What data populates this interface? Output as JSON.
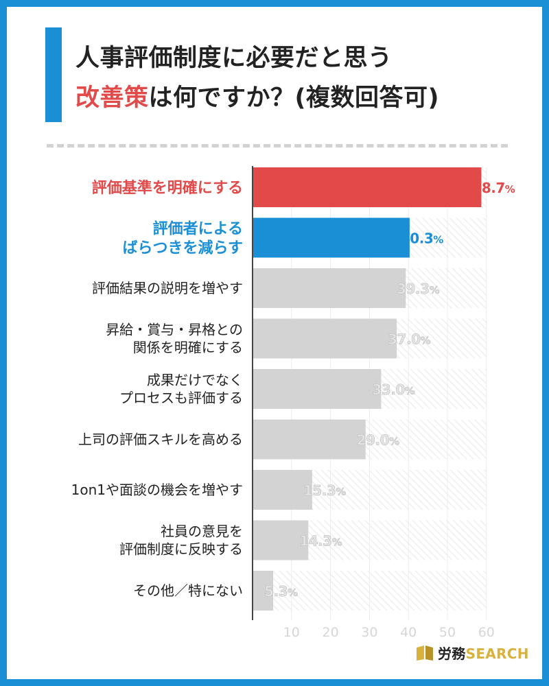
{
  "title": {
    "line1": "人事評価制度に必要だと思う",
    "line2_highlight": "改善策",
    "line2_rest": "は何ですか？(複数回答可)"
  },
  "logo": {
    "text_main": "労務",
    "text_accent": "SEARCH",
    "icon": "book-icon"
  },
  "colors": {
    "accent_blue": "#1a8fd6",
    "accent_red": "#e24a4a",
    "bar_gray": "#d3d3d3",
    "logo_gold": "#d8b23c"
  },
  "chart_data": {
    "type": "bar",
    "orientation": "horizontal",
    "categories": [
      "評価基準を明確にする",
      "評価者による\nばらつきを減らす",
      "評価結果の説明を増やす",
      "昇給・賞与・昇格との\n関係を明確にする",
      "成果だけでなく\nプロセスも評価する",
      "上司の評価スキルを高める",
      "1on1や面談の機会を増やす",
      "社員の意見を\n評価制度に反映する",
      "その他／特にない"
    ],
    "values": [
      58.7,
      40.3,
      39.3,
      37.0,
      33.0,
      29.0,
      15.3,
      14.3,
      5.3
    ],
    "value_labels": [
      "58.7%",
      "40.3%",
      "39.3%",
      "37.0%",
      "33.0%",
      "29.0%",
      "15.3%",
      "14.3%",
      "5.3%"
    ],
    "bar_colors": [
      "#e24a4a",
      "#1a8fd6",
      "#d3d3d3",
      "#d3d3d3",
      "#d3d3d3",
      "#d3d3d3",
      "#d3d3d3",
      "#d3d3d3",
      "#d3d3d3"
    ],
    "label_colors": [
      "#e24a4a",
      "#1a8fd6",
      "#222222",
      "#222222",
      "#222222",
      "#222222",
      "#222222",
      "#222222",
      "#222222"
    ],
    "value_label_colors": [
      "#e24a4a",
      "#1a8fd6",
      "#e4e4e4",
      "#e4e4e4",
      "#e4e4e4",
      "#e4e4e4",
      "#e4e4e4",
      "#e4e4e4",
      "#e4e4e4"
    ],
    "x_ticks": [
      10,
      20,
      30,
      40,
      50,
      60
    ],
    "xlim": [
      0,
      60
    ],
    "grid": true
  }
}
